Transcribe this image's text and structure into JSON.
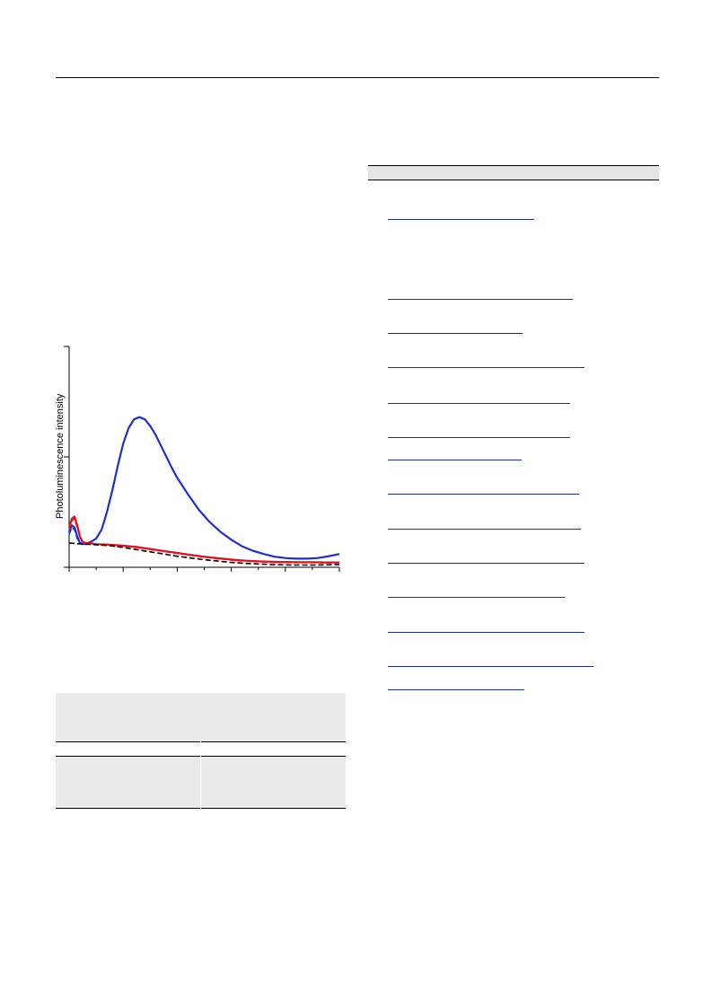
{
  "chart_data": {
    "type": "line",
    "title": "",
    "xlabel": "",
    "ylabel": "Photoluminescence intensity",
    "grid": false,
    "legend": "none",
    "x_range": [
      0,
      100
    ],
    "y_range": [
      0,
      100
    ],
    "series": [
      {
        "color": "#1f2fd6",
        "style": "solid",
        "x": [
          0,
          1,
          2,
          3,
          4,
          5,
          6,
          7,
          8,
          10,
          12,
          14,
          16,
          18,
          20,
          22,
          24,
          26,
          28,
          30,
          32,
          34,
          36,
          38,
          40,
          44,
          48,
          52,
          56,
          60,
          64,
          68,
          72,
          76,
          80,
          84,
          88,
          92,
          96,
          100
        ],
        "y": [
          16,
          19,
          18,
          14,
          11,
          10.5,
          10.5,
          11,
          11.5,
          13,
          17,
          25,
          35,
          46,
          56,
          63,
          67,
          68,
          67,
          64,
          60,
          55,
          50,
          45,
          40.5,
          33,
          26,
          20.5,
          16,
          12.5,
          9.5,
          7.5,
          6,
          4.8,
          4.2,
          3.9,
          3.9,
          4.2,
          5,
          6
        ]
      },
      {
        "color": "#1f2fd6",
        "style": "dashed",
        "x": [
          0,
          1,
          2,
          3,
          4,
          5,
          6,
          7,
          8,
          10,
          12,
          14,
          16,
          18,
          20,
          22,
          24,
          26,
          28,
          30,
          32,
          34,
          36,
          38,
          40,
          44,
          48,
          52,
          56,
          60,
          64,
          68,
          72,
          76,
          80,
          84,
          88,
          92,
          96,
          100
        ],
        "y": [
          15,
          18,
          17,
          13,
          11,
          10.5,
          10.5,
          11,
          11.5,
          13,
          17,
          25,
          35,
          46,
          56,
          63,
          67,
          68,
          67,
          64,
          60,
          55,
          50,
          45,
          40.5,
          33,
          26,
          20.5,
          16,
          12.5,
          9.5,
          7.5,
          6,
          4.8,
          4.2,
          3.9,
          3.9,
          4.2,
          5,
          6
        ]
      },
      {
        "color": "#e3101c",
        "style": "solid",
        "x": [
          0,
          1,
          2,
          3,
          4,
          5,
          6,
          8,
          10,
          15,
          20,
          25,
          30,
          35,
          40,
          45,
          50,
          55,
          60,
          65,
          70,
          75,
          80,
          85,
          90,
          95,
          100
        ],
        "y": [
          18,
          22,
          23,
          19,
          14,
          11.5,
          11,
          10.8,
          10.5,
          10.2,
          9.8,
          9.2,
          8.3,
          7.4,
          6.5,
          5.6,
          4.8,
          4.1,
          3.5,
          3.0,
          2.7,
          2.5,
          2.4,
          2.3,
          2.3,
          2.2,
          2.2
        ]
      },
      {
        "color": "#e3101c",
        "style": "dashed",
        "x": [
          0,
          1,
          2,
          3,
          4,
          5,
          6,
          8,
          10,
          15,
          20,
          25,
          30,
          35,
          40,
          45,
          50,
          55,
          60,
          65,
          70,
          75,
          80,
          85,
          90,
          95,
          100
        ],
        "y": [
          17,
          21,
          22,
          18,
          13.5,
          11.2,
          10.8,
          10.6,
          10.3,
          10.0,
          9.6,
          9.0,
          8.1,
          7.2,
          6.3,
          5.4,
          4.6,
          3.9,
          3.3,
          2.8,
          2.5,
          2.3,
          2.2,
          2.1,
          2.1,
          2.0,
          2.0
        ]
      },
      {
        "color": "#000000",
        "style": "dashed",
        "x": [
          0,
          5,
          10,
          15,
          20,
          25,
          30,
          35,
          40,
          45,
          50,
          55,
          60,
          65,
          70,
          75,
          80,
          85,
          90,
          95,
          100
        ],
        "y": [
          11,
          10.5,
          10.2,
          9.8,
          9.0,
          8.0,
          7.0,
          6.0,
          5.0,
          4.2,
          3.4,
          2.8,
          2.2,
          1.8,
          1.5,
          1.2,
          1.1,
          1.0,
          1.0,
          1.1,
          1.2
        ]
      }
    ]
  }
}
